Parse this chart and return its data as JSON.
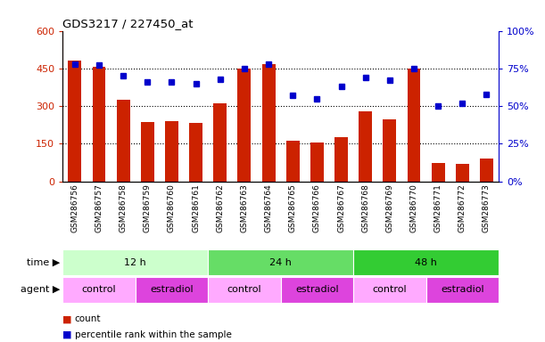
{
  "title": "GDS3217 / 227450_at",
  "samples": [
    "GSM286756",
    "GSM286757",
    "GSM286758",
    "GSM286759",
    "GSM286760",
    "GSM286761",
    "GSM286762",
    "GSM286763",
    "GSM286764",
    "GSM286765",
    "GSM286766",
    "GSM286767",
    "GSM286768",
    "GSM286769",
    "GSM286770",
    "GSM286771",
    "GSM286772",
    "GSM286773"
  ],
  "counts": [
    480,
    455,
    325,
    235,
    238,
    233,
    310,
    450,
    468,
    160,
    153,
    175,
    280,
    248,
    450,
    72,
    68,
    90
  ],
  "percentiles": [
    78,
    77,
    70,
    66,
    66,
    65,
    68,
    75,
    78,
    57,
    55,
    63,
    69,
    67,
    75,
    50,
    52,
    58
  ],
  "ylim_left": [
    0,
    600
  ],
  "ylim_right": [
    0,
    100
  ],
  "yticks_left": [
    0,
    150,
    300,
    450,
    600
  ],
  "yticks_right": [
    0,
    25,
    50,
    75,
    100
  ],
  "bar_color": "#cc2200",
  "dot_color": "#0000cc",
  "time_groups": [
    {
      "label": "12 h",
      "start": 0,
      "end": 6,
      "color": "#ccffcc"
    },
    {
      "label": "24 h",
      "start": 6,
      "end": 12,
      "color": "#66dd66"
    },
    {
      "label": "48 h",
      "start": 12,
      "end": 18,
      "color": "#33cc33"
    }
  ],
  "agent_groups": [
    {
      "label": "control",
      "start": 0,
      "end": 3,
      "color": "#ffaaff"
    },
    {
      "label": "estradiol",
      "start": 3,
      "end": 6,
      "color": "#dd44dd"
    },
    {
      "label": "control",
      "start": 6,
      "end": 9,
      "color": "#ffaaff"
    },
    {
      "label": "estradiol",
      "start": 9,
      "end": 12,
      "color": "#dd44dd"
    },
    {
      "label": "control",
      "start": 12,
      "end": 15,
      "color": "#ffaaff"
    },
    {
      "label": "estradiol",
      "start": 15,
      "end": 18,
      "color": "#dd44dd"
    }
  ],
  "bar_color_hex": "#cc2200",
  "dot_color_hex": "#0000cc"
}
